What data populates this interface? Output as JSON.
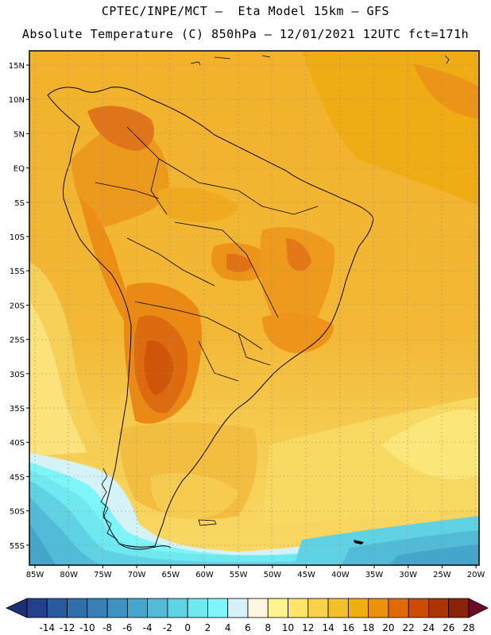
{
  "title": {
    "line1": "CPTEC/INPE/MCT –  Eta Model 15km – GFS",
    "line2": "Absolute Temperature (C) 850hPa – 12/01/2021 12UTC fct=171h"
  },
  "axes": {
    "lat_labels": [
      "15N",
      "10N",
      "5N",
      "EQ",
      "5S",
      "10S",
      "15S",
      "20S",
      "25S",
      "30S",
      "35S",
      "40S",
      "45S",
      "50S",
      "55S"
    ],
    "lon_labels": [
      "85W",
      "80W",
      "75W",
      "70W",
      "65W",
      "60W",
      "55W",
      "50W",
      "45W",
      "40W",
      "35W",
      "30W",
      "25W",
      "20W"
    ]
  },
  "colorbar": {
    "levels": [
      "-14",
      "-12",
      "-10",
      "-8",
      "-6",
      "-4",
      "-2",
      "0",
      "2",
      "4",
      "6",
      "8",
      "10",
      "12",
      "14",
      "16",
      "18",
      "20",
      "22",
      "24",
      "26",
      "28"
    ],
    "colors": [
      "#23408e",
      "#2a5a9e",
      "#2f6faa",
      "#3680b6",
      "#3c92c2",
      "#45a6cc",
      "#52bcd8",
      "#5fd2e4",
      "#6fe8f0",
      "#7ef5f8",
      "#d4f2f8",
      "#fff6e0",
      "#fff48c",
      "#fde46a",
      "#f8d248",
      "#f2c02c",
      "#f0ae10",
      "#ec900e",
      "#e06a08",
      "#cc4c04",
      "#aa3404",
      "#8a2408"
    ],
    "under_color": "#1b2f74",
    "over_color": "#6c0a28"
  }
}
